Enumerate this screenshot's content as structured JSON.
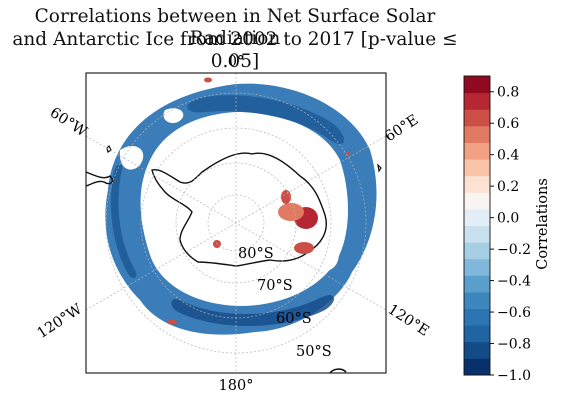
{
  "title_lines": [
    "Correlations between in Net Surface Solar Radiation",
    "and Antarctic Ice from 2002 to 2017 [p-value ≤ 0.05]"
  ],
  "map": {
    "lon_labels": [
      "0°",
      "60°E",
      "120°E",
      "180°",
      "120°W",
      "60°W"
    ],
    "lat_labels": [
      "80°S",
      "70°S",
      "60°S",
      "50°S"
    ]
  },
  "chart_data": {
    "type": "heatmap",
    "title": "Correlations between in Net Surface Solar Radiation and Antarctic Ice from 2002 to 2017 [p-value ≤ 0.05]",
    "projection": "south polar stereographic",
    "colorbar": {
      "label": "Correlations",
      "range": [
        -1.0,
        0.9
      ],
      "ticks": [
        -1.0,
        -0.8,
        -0.6,
        -0.4,
        -0.2,
        0.0,
        0.2,
        0.4,
        0.6,
        0.8
      ],
      "tick_labels": [
        "−1.0",
        "−0.8",
        "−0.6",
        "−0.4",
        "−0.2",
        "0.0",
        "0.2",
        "0.4",
        "0.6",
        "0.8"
      ],
      "level_colors": [
        "#08306b",
        "#134b87",
        "#1f64a3",
        "#2c75b3",
        "#3c88be",
        "#5a9fcc",
        "#7fb8da",
        "#a6cfe4",
        "#c8e0ef",
        "#e3eef6",
        "#f7f4f1",
        "#fbe2d3",
        "#f9c4a8",
        "#f1a083",
        "#e07a62",
        "#cc4e46",
        "#b52733",
        "#900b22"
      ]
    },
    "notes": "Only values with p-value ≤ 0.05 are plotted; predominantly negative correlations (-0.4 to -0.9) in a ring around the Antarctic coast, with small positive patches (~0.6-0.8) in East Antarctica."
  }
}
